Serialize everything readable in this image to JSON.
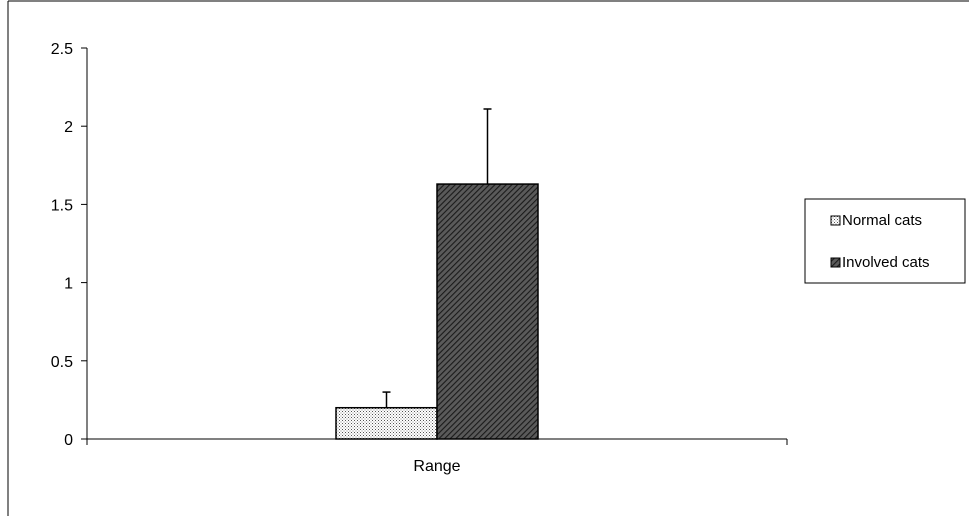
{
  "chart_data": {
    "type": "bar",
    "categories": [
      "Range"
    ],
    "series": [
      {
        "name": "Normal cats",
        "values": [
          0.2
        ],
        "error": [
          0.1
        ],
        "pattern": "dots",
        "color": "#ffffff"
      },
      {
        "name": "Involved cats",
        "values": [
          1.63
        ],
        "error": [
          0.48
        ],
        "pattern": "diagonal-hatch",
        "color": "#3c3c3c"
      }
    ],
    "title": "",
    "xlabel": "",
    "ylabel": "",
    "ylim": [
      0,
      2.5
    ],
    "yticks": [
      0,
      0.5,
      1,
      1.5,
      2,
      2.5
    ],
    "ytick_labels": [
      "0",
      "0.5",
      "1",
      "1.5",
      "2",
      "2.5"
    ],
    "grid": false,
    "legend": "right"
  }
}
